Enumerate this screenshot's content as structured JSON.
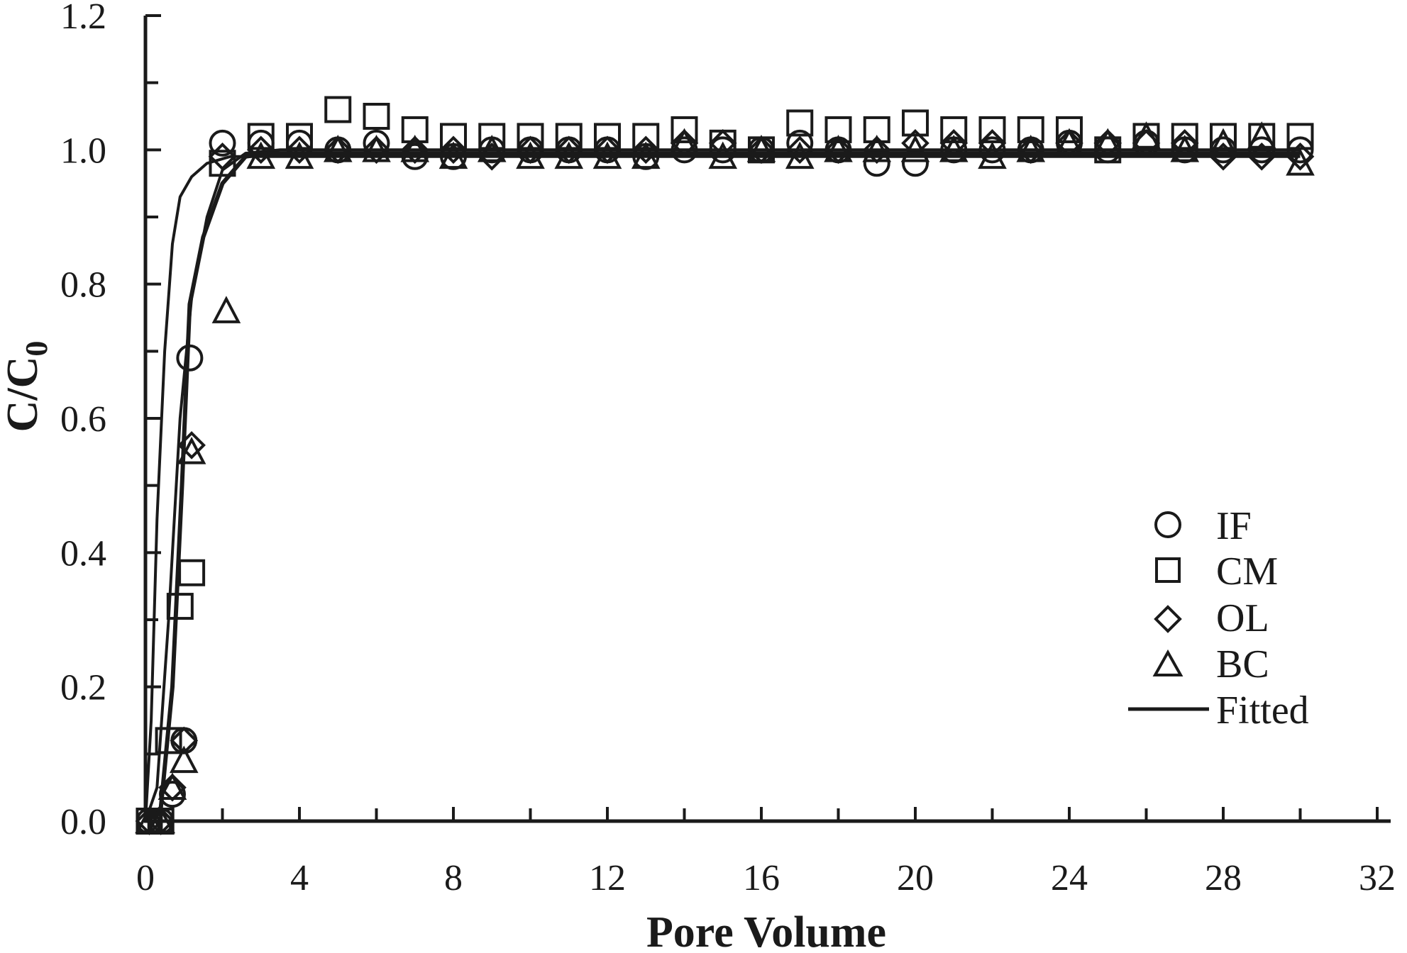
{
  "chart_data": {
    "type": "scatter",
    "title": "",
    "xlabel": "Pore Volume",
    "ylabel_main": "C/C",
    "ylabel_subscript": "0",
    "xlim": [
      0,
      32
    ],
    "ylim": [
      0,
      1.2
    ],
    "xticks": [
      "0",
      "4",
      "8",
      "12",
      "16",
      "20",
      "24",
      "28",
      "32"
    ],
    "yticks": [
      "0.0",
      "0.2",
      "0.4",
      "0.6",
      "0.8",
      "1.0",
      "1.2"
    ],
    "grid": false,
    "legend_position": "bottom-right",
    "series": [
      {
        "name": "IF",
        "marker": "circle",
        "points": [
          [
            0.1,
            0.0
          ],
          [
            0.4,
            0.0
          ],
          [
            0.7,
            0.04
          ],
          [
            1.0,
            0.12
          ],
          [
            1.15,
            0.69
          ],
          [
            2.0,
            1.01
          ],
          [
            3.0,
            1.01
          ],
          [
            4.0,
            1.01
          ],
          [
            5.0,
            1.0
          ],
          [
            6.0,
            1.01
          ],
          [
            7.0,
            0.99
          ],
          [
            8.0,
            0.99
          ],
          [
            9.0,
            1.0
          ],
          [
            10.0,
            1.0
          ],
          [
            11.0,
            1.0
          ],
          [
            12.0,
            1.0
          ],
          [
            13.0,
            0.99
          ],
          [
            14.0,
            1.0
          ],
          [
            15.0,
            1.0
          ],
          [
            16.0,
            1.0
          ],
          [
            17.0,
            1.01
          ],
          [
            18.0,
            1.0
          ],
          [
            19.0,
            0.98
          ],
          [
            20.0,
            0.98
          ],
          [
            21.0,
            1.0
          ],
          [
            22.0,
            1.0
          ],
          [
            23.0,
            1.0
          ],
          [
            24.0,
            1.01
          ],
          [
            25.0,
            1.0
          ],
          [
            26.0,
            1.01
          ],
          [
            27.0,
            1.0
          ],
          [
            28.0,
            1.0
          ],
          [
            29.0,
            1.0
          ],
          [
            30.0,
            1.0
          ]
        ]
      },
      {
        "name": "CM",
        "marker": "square",
        "points": [
          [
            0.1,
            0.0
          ],
          [
            0.4,
            0.0
          ],
          [
            0.6,
            0.12
          ],
          [
            0.9,
            0.32
          ],
          [
            1.2,
            0.37
          ],
          [
            2.0,
            0.98
          ],
          [
            3.0,
            1.02
          ],
          [
            4.0,
            1.02
          ],
          [
            5.0,
            1.06
          ],
          [
            6.0,
            1.05
          ],
          [
            7.0,
            1.03
          ],
          [
            8.0,
            1.02
          ],
          [
            9.0,
            1.02
          ],
          [
            10.0,
            1.02
          ],
          [
            11.0,
            1.02
          ],
          [
            12.0,
            1.02
          ],
          [
            13.0,
            1.02
          ],
          [
            14.0,
            1.03
          ],
          [
            15.0,
            1.01
          ],
          [
            16.0,
            1.0
          ],
          [
            17.0,
            1.04
          ],
          [
            18.0,
            1.03
          ],
          [
            19.0,
            1.03
          ],
          [
            20.0,
            1.04
          ],
          [
            21.0,
            1.03
          ],
          [
            22.0,
            1.03
          ],
          [
            23.0,
            1.03
          ],
          [
            24.0,
            1.03
          ],
          [
            25.0,
            1.0
          ],
          [
            26.0,
            1.02
          ],
          [
            27.0,
            1.02
          ],
          [
            28.0,
            1.02
          ],
          [
            29.0,
            1.02
          ],
          [
            30.0,
            1.02
          ]
        ]
      },
      {
        "name": "OL",
        "marker": "diamond",
        "points": [
          [
            0.1,
            0.0
          ],
          [
            0.4,
            0.0
          ],
          [
            0.7,
            0.05
          ],
          [
            1.0,
            0.12
          ],
          [
            1.2,
            0.56
          ],
          [
            2.0,
            0.99
          ],
          [
            3.0,
            1.0
          ],
          [
            4.0,
            1.0
          ],
          [
            5.0,
            1.0
          ],
          [
            6.0,
            1.0
          ],
          [
            7.0,
            1.0
          ],
          [
            8.0,
            1.0
          ],
          [
            9.0,
            0.99
          ],
          [
            10.0,
            1.0
          ],
          [
            11.0,
            1.0
          ],
          [
            12.0,
            1.0
          ],
          [
            13.0,
            1.0
          ],
          [
            14.0,
            1.01
          ],
          [
            15.0,
            1.01
          ],
          [
            16.0,
            1.0
          ],
          [
            17.0,
            1.0
          ],
          [
            18.0,
            1.0
          ],
          [
            19.0,
            1.0
          ],
          [
            20.0,
            1.01
          ],
          [
            21.0,
            1.01
          ],
          [
            22.0,
            1.01
          ],
          [
            23.0,
            1.0
          ],
          [
            24.0,
            1.01
          ],
          [
            25.0,
            1.01
          ],
          [
            26.0,
            1.01
          ],
          [
            27.0,
            1.01
          ],
          [
            28.0,
            0.99
          ],
          [
            29.0,
            0.99
          ],
          [
            30.0,
            0.99
          ]
        ]
      },
      {
        "name": "BC",
        "marker": "triangle",
        "points": [
          [
            0.1,
            0.0
          ],
          [
            0.4,
            0.0
          ],
          [
            0.7,
            0.05
          ],
          [
            1.0,
            0.09
          ],
          [
            1.2,
            0.55
          ],
          [
            2.1,
            0.76
          ],
          [
            3.0,
            0.99
          ],
          [
            4.0,
            0.99
          ],
          [
            5.0,
            1.0
          ],
          [
            6.0,
            1.0
          ],
          [
            7.0,
            1.0
          ],
          [
            8.0,
            0.99
          ],
          [
            9.0,
            1.0
          ],
          [
            10.0,
            0.99
          ],
          [
            11.0,
            0.99
          ],
          [
            12.0,
            0.99
          ],
          [
            13.0,
            0.99
          ],
          [
            14.0,
            1.01
          ],
          [
            15.0,
            0.99
          ],
          [
            16.0,
            1.0
          ],
          [
            17.0,
            0.99
          ],
          [
            18.0,
            1.0
          ],
          [
            19.0,
            1.0
          ],
          [
            20.0,
            1.0
          ],
          [
            21.0,
            1.0
          ],
          [
            22.0,
            0.99
          ],
          [
            23.0,
            1.0
          ],
          [
            24.0,
            1.01
          ],
          [
            25.0,
            1.01
          ],
          [
            26.0,
            1.02
          ],
          [
            27.0,
            1.0
          ],
          [
            28.0,
            1.01
          ],
          [
            29.0,
            1.02
          ],
          [
            30.0,
            0.98
          ]
        ]
      }
    ],
    "fitted": {
      "name": "Fitted",
      "curves": [
        [
          [
            0,
            0
          ],
          [
            0.15,
            0.15
          ],
          [
            0.3,
            0.45
          ],
          [
            0.5,
            0.7
          ],
          [
            0.7,
            0.86
          ],
          [
            0.9,
            0.93
          ],
          [
            1.2,
            0.96
          ],
          [
            1.6,
            0.98
          ],
          [
            2.2,
            0.99
          ],
          [
            3,
            0.99
          ],
          [
            30,
            0.99
          ]
        ],
        [
          [
            0,
            0
          ],
          [
            0.3,
            0.05
          ],
          [
            0.6,
            0.3
          ],
          [
            0.9,
            0.6
          ],
          [
            1.2,
            0.78
          ],
          [
            1.6,
            0.9
          ],
          [
            2.0,
            0.97
          ],
          [
            2.6,
            0.995
          ],
          [
            3.5,
            1.0
          ],
          [
            30,
            1.0
          ]
        ],
        [
          [
            0,
            0
          ],
          [
            0.4,
            0.02
          ],
          [
            0.7,
            0.2
          ],
          [
            0.95,
            0.5
          ],
          [
            1.15,
            0.77
          ],
          [
            1.5,
            0.87
          ],
          [
            2.0,
            0.95
          ],
          [
            2.6,
            0.99
          ],
          [
            3.2,
            0.995
          ],
          [
            30,
            0.995
          ]
        ]
      ]
    },
    "legend": [
      "IF",
      "CM",
      "OL",
      "BC",
      "Fitted"
    ],
    "colors": {
      "ink": "#1a1a1a",
      "background": "#ffffff"
    }
  }
}
